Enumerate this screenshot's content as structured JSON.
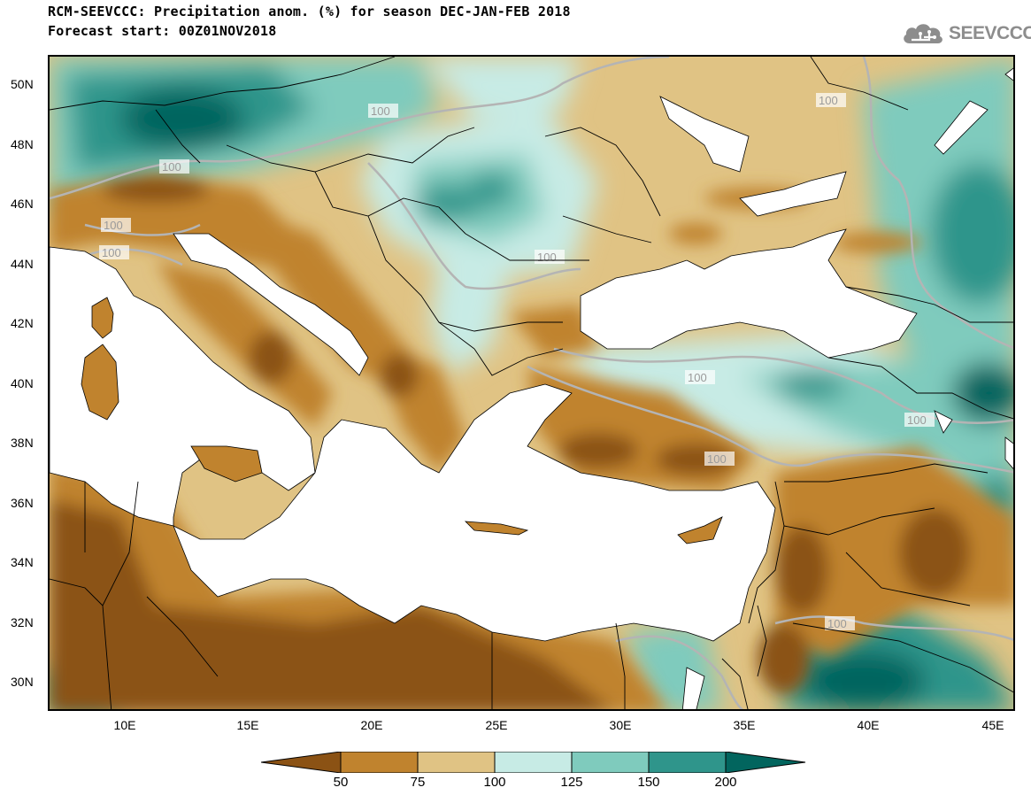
{
  "title_line1": "RCM-SEEVCCC: Precipitation anom. (%) for season DEC-JAN-FEB 2018",
  "title_line2": "Forecast start: 00Z01NOV2018",
  "logo_text": "SEEVCCC",
  "lat_labels": [
    "50N",
    "48N",
    "46N",
    "44N",
    "42N",
    "40N",
    "38N",
    "36N",
    "34N",
    "32N",
    "30N"
  ],
  "lon_labels": [
    "10E",
    "15E",
    "20E",
    "25E",
    "30E",
    "35E",
    "40E",
    "45E"
  ],
  "contour_label": "100",
  "colorbar": {
    "labels": [
      "50",
      "75",
      "100",
      "125",
      "150",
      "200"
    ],
    "colors": [
      "#8b5214",
      "#c0832e",
      "#e0c384",
      "#c7ebe5",
      "#7fcbbd",
      "#2f958b",
      "#02655e"
    ]
  },
  "colors": {
    "sea": "#ffffff",
    "contour": "#b4b4b4",
    "border": "#000000"
  }
}
